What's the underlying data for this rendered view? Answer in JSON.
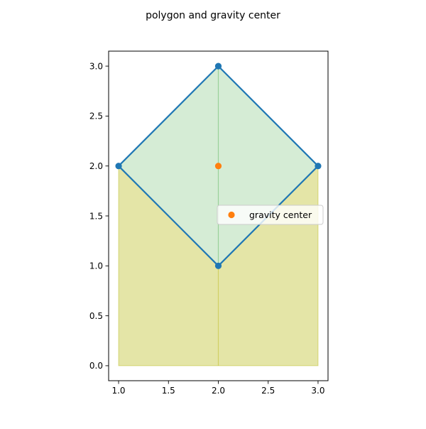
{
  "chart_data": {
    "type": "area",
    "title": "polygon and gravity center",
    "xlabel": "",
    "ylabel": "",
    "xlim": [
      0.9,
      3.1
    ],
    "ylim": [
      -0.15,
      3.15
    ],
    "x_ticks": [
      1.0,
      1.5,
      2.0,
      2.5,
      3.0
    ],
    "x_tick_labels": [
      "1.0",
      "1.5",
      "2.0",
      "2.5",
      "3.0"
    ],
    "y_ticks": [
      0.0,
      0.5,
      1.0,
      1.5,
      2.0,
      2.5,
      3.0
    ],
    "y_tick_labels": [
      "0.0",
      "0.5",
      "1.0",
      "1.5",
      "2.0",
      "2.5",
      "3.0"
    ],
    "grid": false,
    "legend_position": "center-right",
    "series": [
      {
        "role": "polygon-outline",
        "x": [
          1,
          2,
          3,
          2,
          1
        ],
        "y": [
          2,
          3,
          2,
          1,
          2
        ],
        "color": "#1f77b4"
      },
      {
        "role": "fill-below",
        "x": [
          1,
          2,
          3
        ],
        "y": [
          2,
          1,
          2
        ],
        "baseline": 0,
        "color": "#bcbd22"
      },
      {
        "role": "fill-between",
        "x": [
          1,
          2,
          3
        ],
        "y_lower": [
          2,
          1,
          2
        ],
        "y_upper": [
          2,
          3,
          2
        ],
        "color": "#2ca02c"
      },
      {
        "name": "gravity center",
        "role": "scatter",
        "x": [
          2
        ],
        "y": [
          2
        ],
        "color": "#ff7f0e"
      }
    ],
    "legend": [
      {
        "label": "gravity center",
        "color": "#ff7f0e"
      }
    ]
  }
}
